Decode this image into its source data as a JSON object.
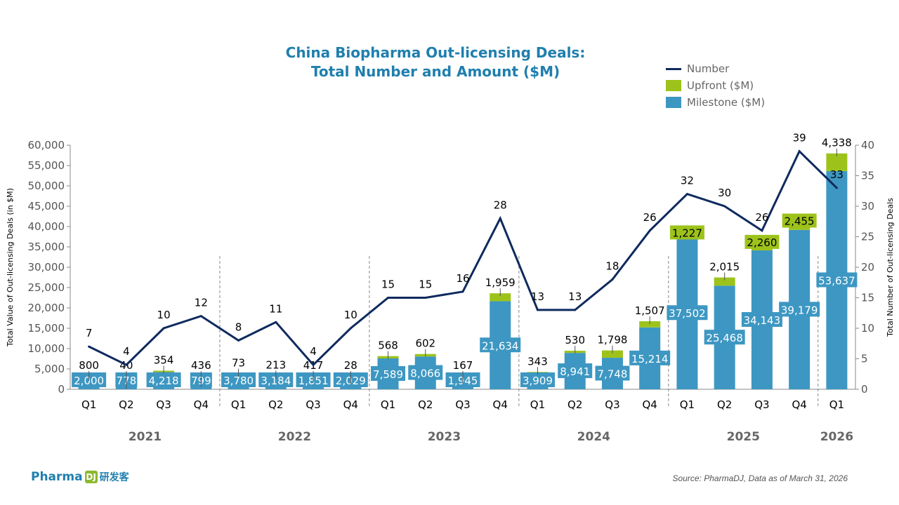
{
  "chart_data": {
    "type": "bar",
    "title": [
      "China Biopharma Out-licensing Deals:",
      "Total Number and Amount ($M)"
    ],
    "ylabel": "Total Value of Out-licensing Deals (in $M)",
    "y2label": "Total Number of Out-licensing Deals",
    "ylim": [
      0,
      60000
    ],
    "y2lim": [
      0,
      40
    ],
    "yticks": [
      "0",
      "5,000",
      "10,000",
      "15,000",
      "20,000",
      "25,000",
      "30,000",
      "35,000",
      "40,000",
      "45,000",
      "50,000",
      "55,000",
      "60,000"
    ],
    "y2ticks": [
      "0",
      "5",
      "10",
      "15",
      "20",
      "25",
      "30",
      "35",
      "40"
    ],
    "categories": [
      "Q1",
      "Q2",
      "Q3",
      "Q4",
      "Q1",
      "Q2",
      "Q3",
      "Q4",
      "Q1",
      "Q2",
      "Q3",
      "Q4",
      "Q1",
      "Q2",
      "Q3",
      "Q4",
      "Q1",
      "Q2",
      "Q3",
      "Q4",
      "Q1"
    ],
    "years": [
      {
        "label": "2021",
        "span": 4
      },
      {
        "label": "2022",
        "span": 4
      },
      {
        "label": "2023",
        "span": 4
      },
      {
        "label": "2024",
        "span": 4
      },
      {
        "label": "2025",
        "span": 4
      },
      {
        "label": "2026",
        "span": 1
      }
    ],
    "legend": [
      "Number",
      "Upfront ($M)",
      "Milestone ($M)"
    ],
    "legend_position": "top-right",
    "series": [
      {
        "name": "Milestone ($M)",
        "type": "bar",
        "color": "#3d97c2",
        "values": [
          2000,
          778,
          4218,
          799,
          3780,
          3184,
          1851,
          2029,
          7589,
          8066,
          1945,
          21634,
          3909,
          8941,
          7748,
          15214,
          37502,
          25468,
          34143,
          39179,
          53637
        ]
      },
      {
        "name": "Upfront ($M)",
        "type": "bar",
        "color": "#9dc31b",
        "values": [
          800,
          40,
          354,
          436,
          73,
          213,
          417,
          28,
          568,
          602,
          167,
          1959,
          343,
          530,
          1798,
          1507,
          1227,
          2015,
          2260,
          2455,
          4338
        ]
      },
      {
        "name": "Number",
        "type": "line",
        "axis": "right",
        "color": "#0f2a5e",
        "values": [
          7,
          4,
          10,
          12,
          8,
          11,
          4,
          10,
          15,
          15,
          16,
          28,
          13,
          13,
          18,
          26,
          32,
          30,
          26,
          39,
          33
        ]
      }
    ]
  },
  "source": "Source: PharmaDJ, Data as of March 31, 2026",
  "logo": {
    "text": "Pharma",
    "mark": "DJ",
    "cn": "研发客"
  }
}
